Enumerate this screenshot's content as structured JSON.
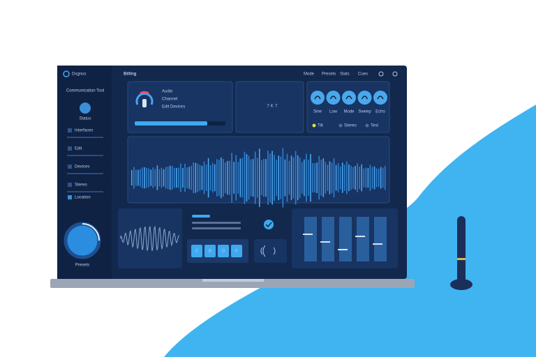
{
  "sidebar": {
    "brand": "Dsgnux",
    "subtitle": "Communication Tool",
    "avatar_label": "Status",
    "nav": [
      "Interfaces",
      "Edit",
      "Devices",
      "Stereo"
    ],
    "footer_item": "Location",
    "knob_label": "Presets"
  },
  "header": {
    "title": "Billing",
    "menu": [
      "Mode",
      "Presets",
      "Stats",
      "Cues"
    ]
  },
  "audio_card": {
    "title": "Audio",
    "subtitle": "Channel",
    "link": "Edit Devices"
  },
  "clock": {
    "time": "7 4: 7"
  },
  "modes": {
    "labels": [
      "Sine",
      "Low",
      "Mode",
      "Sweep",
      "Echo"
    ],
    "legend": [
      "Tilt",
      "Stereo",
      "Test"
    ]
  },
  "controls": {
    "buttons": [
      "C",
      "B",
      "O",
      "F"
    ]
  }
}
